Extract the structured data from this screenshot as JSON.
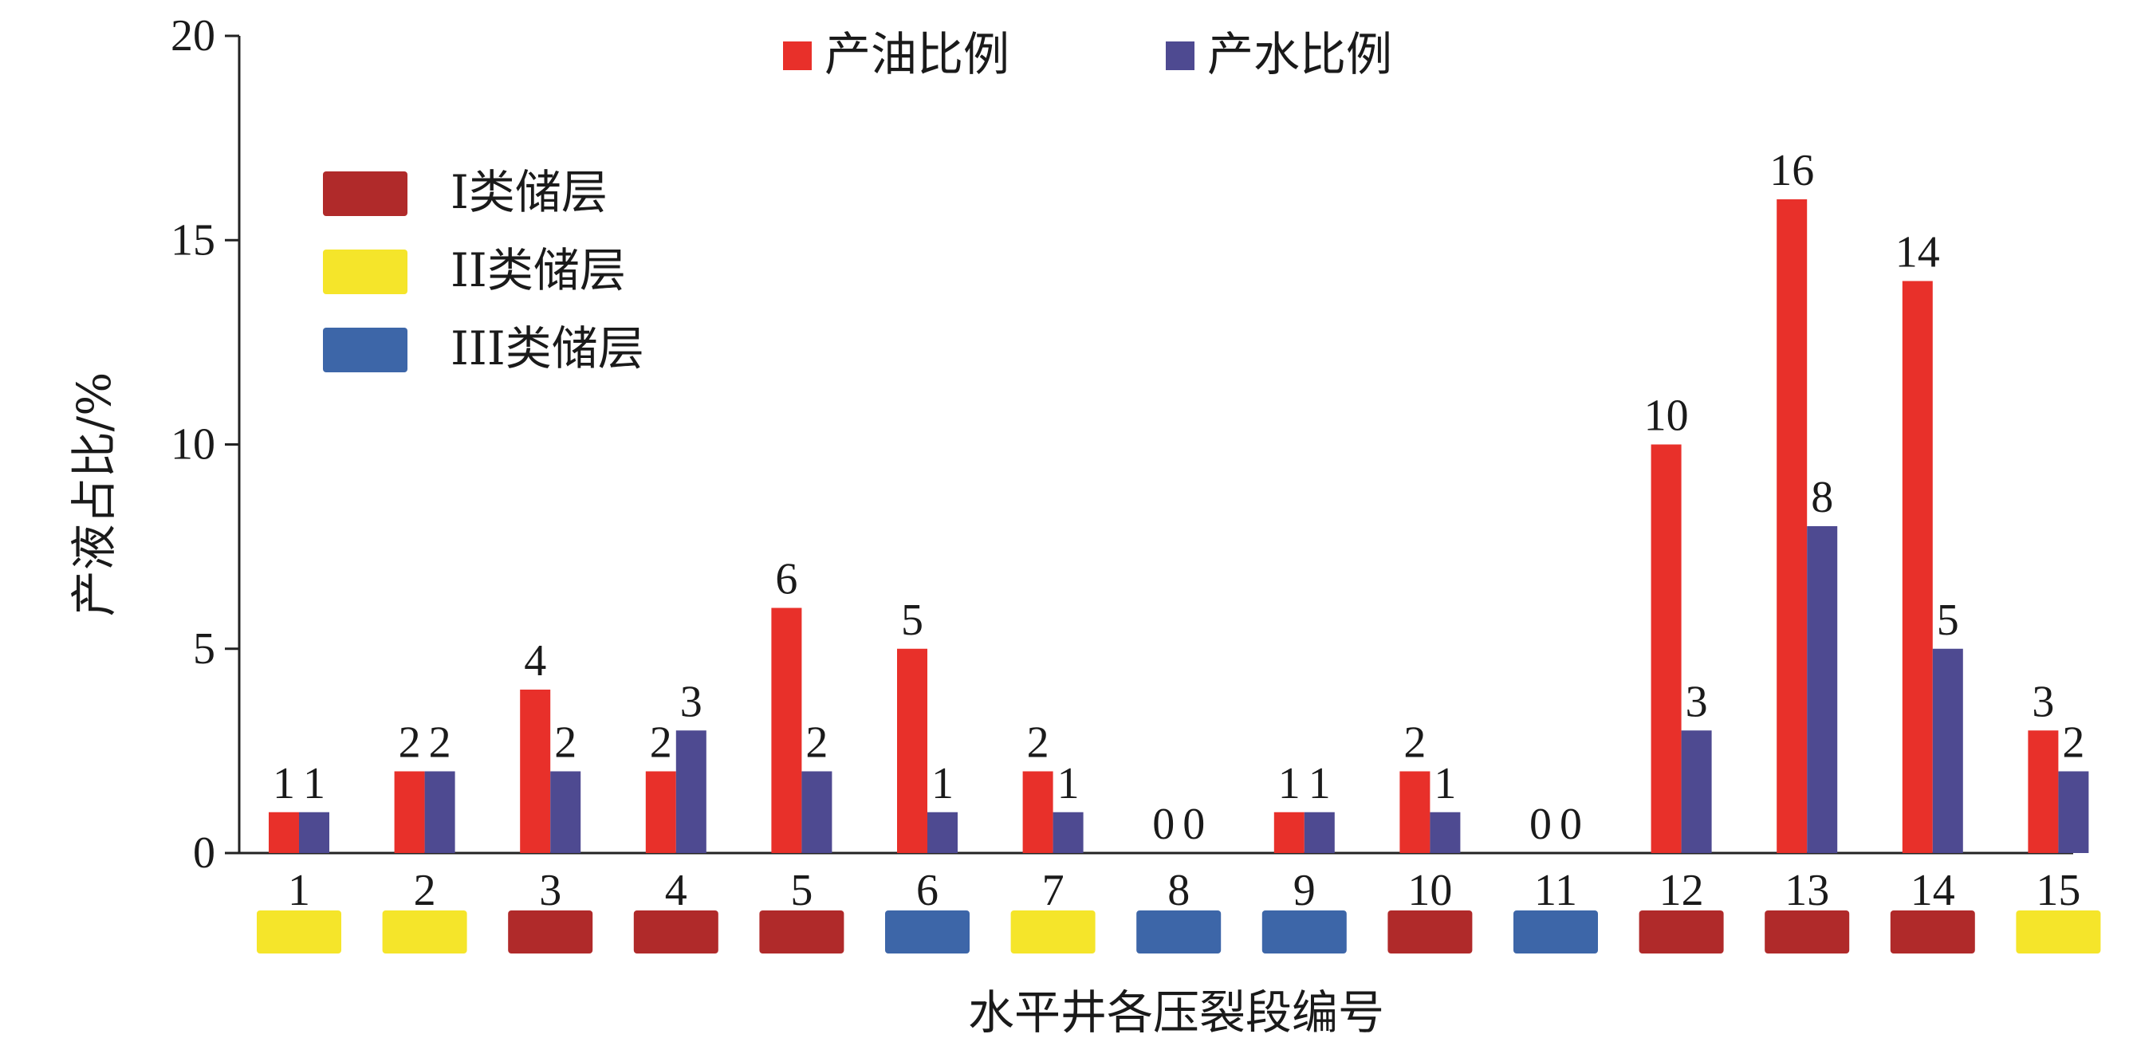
{
  "chart_data": {
    "type": "bar",
    "title": "",
    "xlabel": "水平井各压裂段编号",
    "ylabel": "产液占比/%",
    "ylim": [
      0,
      20
    ],
    "yticks": [
      0,
      5,
      10,
      15,
      20
    ],
    "grid": false,
    "categories": [
      "1",
      "2",
      "3",
      "4",
      "5",
      "6",
      "7",
      "8",
      "9",
      "10",
      "11",
      "12",
      "13",
      "14",
      "15"
    ],
    "series": [
      {
        "name": "产油比例",
        "color": "#e8302a",
        "values": [
          1,
          2,
          4,
          2,
          6,
          5,
          2,
          0,
          1,
          2,
          0,
          10,
          16,
          14,
          3
        ]
      },
      {
        "name": "产水比例",
        "color": "#4e4a91",
        "values": [
          1,
          2,
          2,
          3,
          2,
          1,
          1,
          0,
          1,
          1,
          0,
          3,
          8,
          5,
          2
        ]
      }
    ],
    "legend_placement": "top-center",
    "reservoir_legend": [
      {
        "key": "I",
        "label": "I类储层",
        "color": "#b02a2a"
      },
      {
        "key": "II",
        "label": "II类储层",
        "color": "#f5e52a"
      },
      {
        "key": "III",
        "label": "III类储层",
        "color": "#3d66a8"
      }
    ],
    "reservoir_class": [
      "II",
      "II",
      "I",
      "I",
      "I",
      "III",
      "II",
      "III",
      "III",
      "I",
      "III",
      "I",
      "I",
      "I",
      "II"
    ]
  }
}
